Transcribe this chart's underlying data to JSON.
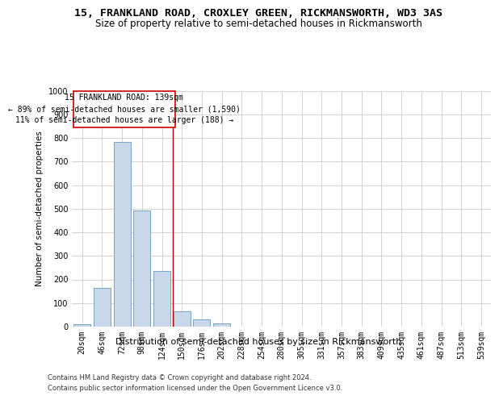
{
  "title1": "15, FRANKLAND ROAD, CROXLEY GREEN, RICKMANSWORTH, WD3 3AS",
  "title2": "Size of property relative to semi-detached houses in Rickmansworth",
  "xlabel": "Distribution of semi-detached houses by size in Rickmansworth",
  "ylabel": "Number of semi-detached properties",
  "categories": [
    "20sqm",
    "46sqm",
    "72sqm",
    "98sqm",
    "124sqm",
    "150sqm",
    "176sqm",
    "202sqm",
    "228sqm",
    "254sqm",
    "280sqm",
    "305sqm",
    "331sqm",
    "357sqm",
    "383sqm",
    "409sqm",
    "435sqm",
    "461sqm",
    "487sqm",
    "513sqm",
    "539sqm"
  ],
  "values": [
    10,
    163,
    782,
    492,
    235,
    65,
    30,
    13,
    0,
    0,
    0,
    0,
    0,
    0,
    0,
    0,
    0,
    0,
    0,
    0,
    0
  ],
  "bar_color": "#c8d8e8",
  "bar_edge_color": "#6699bb",
  "grid_color": "#cccccc",
  "annotation_box_color": "#cc0000",
  "vline_color": "#cc0000",
  "vline_position": 4.55,
  "annotation_text": "15 FRANKLAND ROAD: 139sqm\n← 89% of semi-detached houses are smaller (1,590)\n11% of semi-detached houses are larger (188) →",
  "footer1": "Contains HM Land Registry data © Crown copyright and database right 2024.",
  "footer2": "Contains public sector information licensed under the Open Government Licence v3.0.",
  "ylim": [
    0,
    1000
  ],
  "yticks": [
    0,
    100,
    200,
    300,
    400,
    500,
    600,
    700,
    800,
    900,
    1000
  ],
  "background_color": "#ffffff",
  "title1_fontsize": 9.5,
  "title2_fontsize": 8.5,
  "xlabel_fontsize": 8,
  "ylabel_fontsize": 7.5,
  "tick_fontsize": 7,
  "annotation_fontsize": 7,
  "footer_fontsize": 6
}
